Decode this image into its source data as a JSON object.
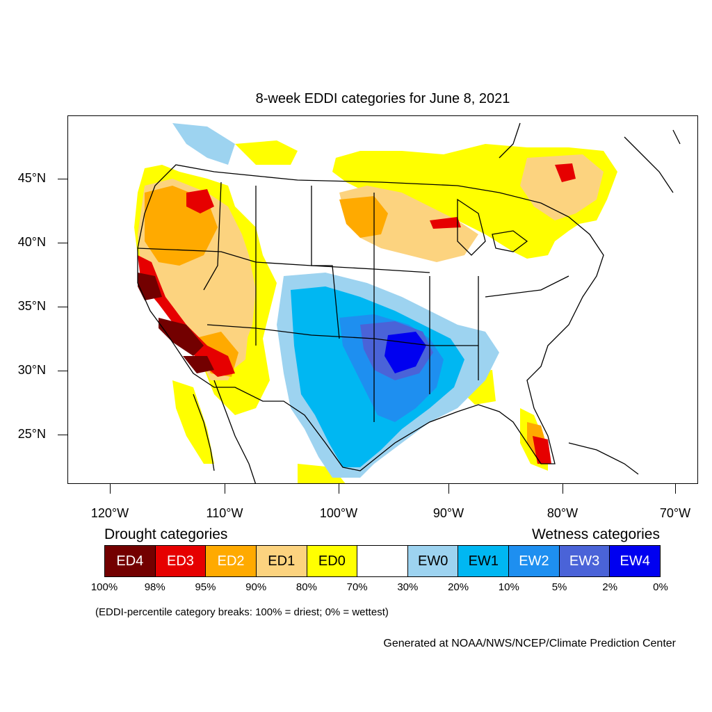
{
  "title": "8-week EDDI categories for June 8, 2021",
  "latitude_labels": [
    "45°N",
    "40°N",
    "35°N",
    "30°N",
    "25°N"
  ],
  "longitude_labels": [
    "120°W",
    "110°W",
    "100°W",
    "90°W",
    "80°W",
    "70°W"
  ],
  "legend": {
    "drought_heading": "Drought categories",
    "wetness_heading": "Wetness categories",
    "categories": [
      {
        "label": "ED4",
        "color": "#730000",
        "text_color": "#ffffff"
      },
      {
        "label": "ED3",
        "color": "#e60000",
        "text_color": "#ffffff"
      },
      {
        "label": "ED2",
        "color": "#ffaa00",
        "text_color": "#ffffff"
      },
      {
        "label": "ED1",
        "color": "#fcd37f",
        "text_color": "#000000"
      },
      {
        "label": "ED0",
        "color": "#ffff00",
        "text_color": "#000000"
      },
      {
        "label": "",
        "color": "#ffffff",
        "text_color": "#000000"
      },
      {
        "label": "EW0",
        "color": "#9dd3f0",
        "text_color": "#000000"
      },
      {
        "label": "EW1",
        "color": "#00b7f2",
        "text_color": "#000000"
      },
      {
        "label": "EW2",
        "color": "#1e8ff0",
        "text_color": "#ffffff"
      },
      {
        "label": "EW3",
        "color": "#4a63d8",
        "text_color": "#ffffff"
      },
      {
        "label": "EW4",
        "color": "#0000f0",
        "text_color": "#ffffff"
      }
    ],
    "breaks": [
      "100%",
      "98%",
      "95%",
      "90%",
      "80%",
      "70%",
      "30%",
      "20%",
      "10%",
      "5%",
      "2%",
      "0%"
    ]
  },
  "note": "(EDDI-percentile category breaks: 100% = driest; 0% = wettest)",
  "credit": "Generated at NOAA/NWS/NCEP/Climate Prediction Center"
}
